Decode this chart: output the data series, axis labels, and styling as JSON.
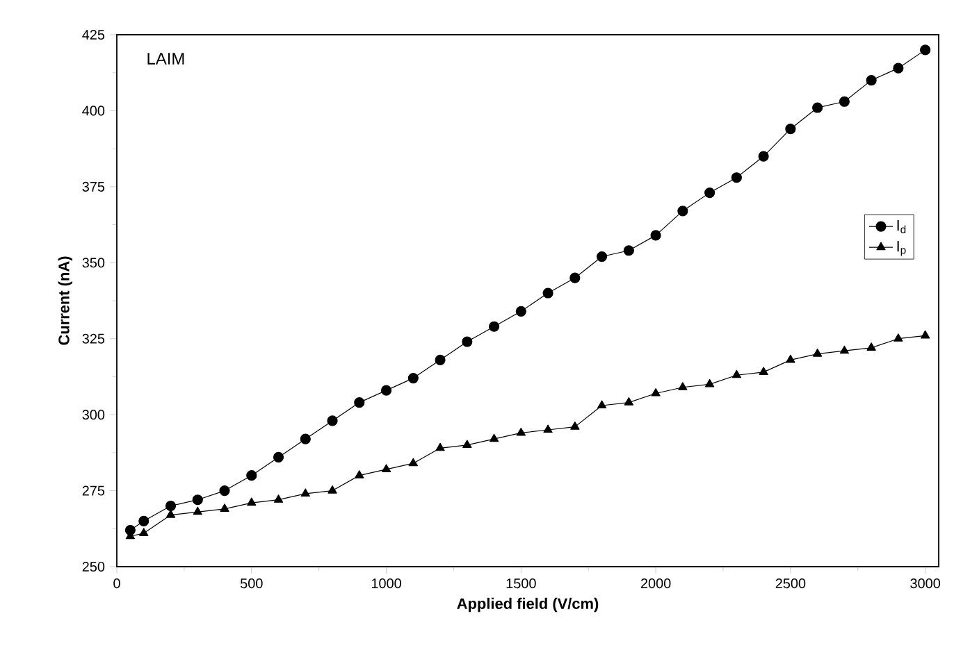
{
  "chart_data": {
    "type": "line",
    "xlabel": "Applied field (V/cm)",
    "ylabel": "Current (nA)",
    "x": [
      50,
      100,
      200,
      300,
      400,
      500,
      600,
      700,
      800,
      900,
      1000,
      1100,
      1200,
      1300,
      1400,
      1500,
      1600,
      1700,
      1800,
      1900,
      2000,
      2100,
      2200,
      2300,
      2400,
      2500,
      2600,
      2700,
      2800,
      2900,
      3000
    ],
    "series": [
      {
        "name": "I$_{d}$",
        "color": "#000000",
        "marker": "circle",
        "values": [
          262,
          265,
          270,
          272,
          275,
          280,
          286,
          292,
          298,
          304,
          308,
          312,
          318,
          324,
          329,
          334,
          340,
          345,
          352,
          354,
          359,
          367,
          373,
          378,
          385,
          394,
          401,
          403,
          410,
          414,
          420
        ]
      },
      {
        "name": "I$_{p}$",
        "color": "#000000",
        "marker": "triangle",
        "values": [
          260,
          261,
          267,
          268,
          269,
          271,
          272,
          274,
          275,
          280,
          282,
          284,
          289,
          290,
          292,
          294,
          295,
          296,
          303,
          304,
          307,
          309,
          310,
          313,
          314,
          318,
          320,
          321,
          322,
          325,
          326
        ]
      }
    ],
    "xlim": [
      0,
      3050
    ],
    "xticks": [
      0,
      500,
      1000,
      1500,
      2000,
      2500,
      3000
    ],
    "ylim": [
      250,
      425
    ],
    "yticks": [
      250,
      275,
      300,
      325,
      350,
      375,
      400,
      425
    ],
    "legend": "right",
    "grid": false,
    "line_style": "solid",
    "annotations": [
      "LAIM"
    ]
  }
}
